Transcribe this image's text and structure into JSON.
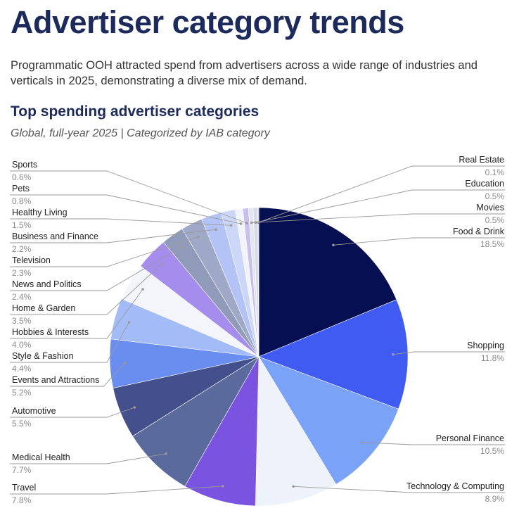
{
  "header": {
    "title": "Advertiser category trends",
    "intro": "Programmatic OOH attracted spend from advertisers across a wide range of industries and verticals in 2025, demonstrating a diverse mix of demand."
  },
  "chart_data": {
    "type": "pie",
    "title": "Top spending advertiser categories",
    "subtitle": "Global, full-year 2025 | Categorized by IAB category",
    "slices": [
      {
        "label": "Food & Drink",
        "value": 18.5,
        "display": "18.5%",
        "color": "#060f52"
      },
      {
        "label": "Shopping",
        "value": 11.8,
        "display": "11.8%",
        "color": "#3f5bf2"
      },
      {
        "label": "Personal Finance",
        "value": 10.5,
        "display": "10.5%",
        "color": "#7aa2f7"
      },
      {
        "label": "Technology & Computing",
        "value": 8.9,
        "display": "8.9%",
        "color": "#eef2fb"
      },
      {
        "label": "Travel",
        "value": 7.8,
        "display": "7.8%",
        "color": "#7a53e0"
      },
      {
        "label": "Medical Health",
        "value": 7.7,
        "display": "7.7%",
        "color": "#5a6a9c"
      },
      {
        "label": "Automotive",
        "value": 5.5,
        "display": "5.5%",
        "color": "#44508c"
      },
      {
        "label": "Events and Attractions",
        "value": 5.2,
        "display": "5.2%",
        "color": "#6a8df0"
      },
      {
        "label": "Style & Fashion",
        "value": 4.4,
        "display": "4.4%",
        "color": "#a3bcf7"
      },
      {
        "label": "Hobbies & Interests",
        "value": 4.0,
        "display": "4.0%",
        "color": "#f3f5fb"
      },
      {
        "label": "Home & Garden",
        "value": 3.5,
        "display": "3.5%",
        "color": "#a48ded"
      },
      {
        "label": "News and Politics",
        "value": 2.4,
        "display": "2.4%",
        "color": "#8f9bb9"
      },
      {
        "label": "Television",
        "value": 2.3,
        "display": "2.3%",
        "color": "#9ea9c7"
      },
      {
        "label": "Business and Finance",
        "value": 2.2,
        "display": "2.2%",
        "color": "#b3c3f6"
      },
      {
        "label": "Healthy Living",
        "value": 1.5,
        "display": "1.5%",
        "color": "#ccd7f7"
      },
      {
        "label": "Pets",
        "value": 0.8,
        "display": "0.8%",
        "color": "#f2f4fa"
      },
      {
        "label": "Sports",
        "value": 0.6,
        "display": "0.6%",
        "color": "#c8c0ec"
      },
      {
        "label": "Movies",
        "value": 0.5,
        "display": "0.5%",
        "color": "#e3e6ef"
      },
      {
        "label": "Education",
        "value": 0.5,
        "display": "0.5%",
        "color": "#d5dae6"
      },
      {
        "label": "Real Estate",
        "value": 0.1,
        "display": "0.1%",
        "color": "#c2c8d6"
      }
    ]
  }
}
